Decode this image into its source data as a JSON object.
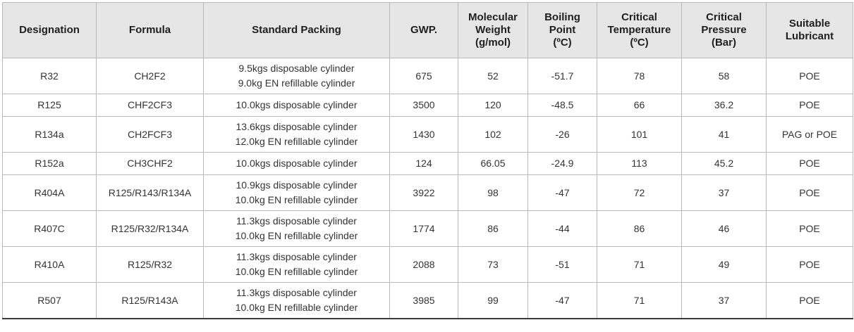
{
  "table": {
    "headers": [
      [
        "Designation"
      ],
      [
        "Formula"
      ],
      [
        "Standard Packing"
      ],
      [
        "GWP."
      ],
      [
        "Molecular",
        "Weight",
        "(g/mol)"
      ],
      [
        "Boiling",
        "Point",
        "(ºC)"
      ],
      [
        "Critical",
        "Temperature",
        "(ºC)"
      ],
      [
        "Critical",
        "Pressure",
        "(Bar)"
      ],
      [
        "Suitable",
        "Lubricant"
      ]
    ],
    "rows": [
      {
        "designation": "R32",
        "formula": "CH2F2",
        "packing": [
          "9.5kgs disposable cylinder",
          "9.0kg EN refillable cylinder"
        ],
        "gwp": "675",
        "mw": "52",
        "bp": "-51.7",
        "ct": "78",
        "cp": "58",
        "lub": "POE"
      },
      {
        "designation": "R125",
        "formula": "CHF2CF3",
        "packing": [
          "10.0kgs disposable cylinder"
        ],
        "gwp": "3500",
        "mw": "120",
        "bp": "-48.5",
        "ct": "66",
        "cp": "36.2",
        "lub": "POE"
      },
      {
        "designation": "R134a",
        "formula": "CH2FCF3",
        "packing": [
          "13.6kgs disposable cylinder",
          "12.0kg EN refillable cylinder"
        ],
        "gwp": "1430",
        "mw": "102",
        "bp": "-26",
        "ct": "101",
        "cp": "41",
        "lub": "PAG or POE"
      },
      {
        "designation": "R152a",
        "formula": "CH3CHF2",
        "packing": [
          "10.0kgs disposable cylinder"
        ],
        "gwp": "124",
        "mw": "66.05",
        "bp": "-24.9",
        "ct": "113",
        "cp": "45.2",
        "lub": "POE"
      },
      {
        "designation": "R404A",
        "formula": "R125/R143/R134A",
        "packing": [
          "10.9kgs disposable cylinder",
          "10.0kg EN refillable cylinder"
        ],
        "gwp": "3922",
        "mw": "98",
        "bp": "-47",
        "ct": "72",
        "cp": "37",
        "lub": "POE"
      },
      {
        "designation": "R407C",
        "formula": "R125/R32/R134A",
        "packing": [
          "11.3kgs disposable cylinder",
          "10.0kg EN refillable cylinder"
        ],
        "gwp": "1774",
        "mw": "86",
        "bp": "-44",
        "ct": "86",
        "cp": "46",
        "lub": "POE"
      },
      {
        "designation": "R410A",
        "formula": "R125/R32",
        "packing": [
          "11.3kgs disposable cylinder",
          "10.0kg EN refillable cylinder"
        ],
        "gwp": "2088",
        "mw": "73",
        "bp": "-51",
        "ct": "71",
        "cp": "49",
        "lub": "POE"
      },
      {
        "designation": "R507",
        "formula": "R125/R143A",
        "packing": [
          "11.3kgs disposable cylinder",
          "10.0kg EN refillable cylinder"
        ],
        "gwp": "3985",
        "mw": "99",
        "bp": "-47",
        "ct": "71",
        "cp": "37",
        "lub": "POE"
      }
    ]
  }
}
